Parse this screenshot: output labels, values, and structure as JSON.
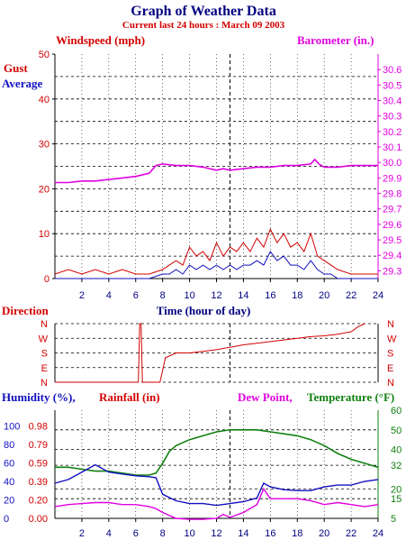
{
  "title": "Graph of Weather Data",
  "subtitle": "Current last 24 hours : March 09 2003",
  "colors": {
    "red": "#d40000",
    "blue": "#1010c0",
    "magenta": "#e000e0",
    "green": "#108010",
    "navy": "#000080",
    "grid": "#000000"
  },
  "chart_data": [
    {
      "type": "line",
      "ylabel_left": "Windspeed (mph)",
      "ylabel_right": "Barometer (in.)",
      "xlabel": "Time (hour of day)",
      "xlim": [
        0,
        24
      ],
      "ylim_left": [
        0,
        50
      ],
      "ylim_right": [
        29.25,
        30.7
      ],
      "x_ticks": [
        "2",
        "4",
        "6",
        "8",
        "10",
        "12",
        "14",
        "16",
        "18",
        "20",
        "22",
        "24"
      ],
      "y_ticks_left": [
        "0",
        "10",
        "20",
        "30",
        "40",
        "50"
      ],
      "y_ticks_right": [
        "29.3",
        "29.4",
        "29.5",
        "29.6",
        "29.7",
        "29.8",
        "29.9",
        "30.0",
        "30.1",
        "30.2",
        "30.3",
        "30.4",
        "30.5",
        "30.6"
      ],
      "current_time_marker": 13,
      "series": [
        {
          "name": "Gust",
          "axis": "left",
          "color": "#d40000",
          "x": [
            0,
            1,
            2,
            3,
            4,
            5,
            6,
            7,
            8,
            8.5,
            9,
            9.5,
            10,
            10.5,
            11,
            11.5,
            12,
            12.5,
            13,
            13.5,
            14,
            14.5,
            15,
            15.5,
            16,
            16.5,
            17,
            17.5,
            18,
            18.5,
            19,
            19.5,
            20,
            20.5,
            21,
            22,
            23,
            24
          ],
          "y": [
            1,
            2,
            1,
            2,
            1,
            2,
            1,
            1,
            2,
            3,
            4,
            3,
            7,
            5,
            6,
            4,
            8,
            5,
            7,
            6,
            8,
            6,
            9,
            7,
            11,
            8,
            10,
            7,
            8,
            6,
            10,
            5,
            4,
            3,
            2,
            1,
            1,
            1
          ]
        },
        {
          "name": "Average",
          "axis": "left",
          "color": "#1010c0",
          "x": [
            0,
            1,
            2,
            3,
            4,
            5,
            6,
            7,
            8,
            8.5,
            9,
            9.5,
            10,
            10.5,
            11,
            11.5,
            12,
            12.5,
            13,
            13.5,
            14,
            14.5,
            15,
            15.5,
            16,
            16.5,
            17,
            17.5,
            18,
            18.5,
            19,
            19.5,
            20,
            20.5,
            21,
            22,
            23,
            24
          ],
          "y": [
            0,
            0,
            0,
            0,
            0,
            0,
            0,
            0,
            1,
            1,
            2,
            1,
            3,
            2,
            3,
            2,
            3,
            2,
            3,
            2,
            3,
            3,
            4,
            3,
            6,
            4,
            5,
            3,
            3,
            2,
            4,
            2,
            1,
            1,
            0,
            0,
            0,
            0
          ]
        },
        {
          "name": "Barometer",
          "axis": "right",
          "color": "#e000e0",
          "x": [
            0,
            1,
            2,
            3,
            4,
            5,
            6,
            7,
            7.5,
            8,
            9,
            10,
            11,
            12,
            12.5,
            13,
            14,
            15,
            16,
            17,
            18,
            19,
            19.3,
            19.6,
            20,
            21,
            22,
            23,
            24
          ],
          "y": [
            29.87,
            29.87,
            29.88,
            29.88,
            29.89,
            29.9,
            29.91,
            29.93,
            29.98,
            29.99,
            29.98,
            29.98,
            29.97,
            29.95,
            29.96,
            29.95,
            29.96,
            29.97,
            29.97,
            29.98,
            29.98,
            29.99,
            30.02,
            29.99,
            29.97,
            29.97,
            29.98,
            29.98,
            29.98
          ]
        }
      ]
    },
    {
      "type": "line",
      "ylabel": "Direction",
      "y_ticks": [
        "N",
        "W",
        "S",
        "E",
        "N"
      ],
      "series": [
        {
          "name": "Direction",
          "color": "#d40000",
          "x": [
            0,
            6,
            6.2,
            6.3,
            6.4,
            6.5,
            6.6,
            7.8,
            8.2,
            9,
            10,
            11,
            12,
            13,
            14,
            15,
            16,
            17,
            18,
            19,
            20,
            21,
            22,
            22.5,
            23
          ],
          "y": [
            0,
            0,
            0,
            360,
            360,
            0,
            0,
            0,
            150,
            180,
            180,
            190,
            200,
            215,
            230,
            240,
            250,
            260,
            270,
            280,
            285,
            295,
            310,
            340,
            360
          ]
        }
      ]
    },
    {
      "type": "line",
      "labels": {
        "humidity": "Humidity (%),",
        "rainfall": "Rainfall (in)",
        "dewpoint": "Dew Point,",
        "temperature": "Temperature (°F)"
      },
      "ylim_left": [
        0,
        117
      ],
      "ylim_right": [
        5,
        60
      ],
      "y_ticks_humidity": [
        "0",
        "20",
        "40",
        "60",
        "80",
        "100"
      ],
      "y_ticks_rainfall": [
        "0.00",
        "0.20",
        "0.39",
        "0.59",
        "0.79",
        "0.98"
      ],
      "y_ticks_temp": [
        "5",
        "15",
        "20",
        "32",
        "40",
        "50",
        "60"
      ],
      "series": [
        {
          "name": "Humidity",
          "axis": "left",
          "color": "#1010c0",
          "x": [
            0,
            1,
            2,
            3,
            4,
            5,
            6,
            7,
            7.5,
            8,
            9,
            10,
            11,
            12,
            13,
            14,
            15,
            15.5,
            16,
            17,
            18,
            19,
            20,
            21,
            22,
            23,
            24
          ],
          "y": [
            38,
            42,
            50,
            58,
            50,
            48,
            46,
            45,
            44,
            26,
            19,
            16,
            16,
            14,
            16,
            18,
            22,
            38,
            34,
            31,
            30,
            30,
            34,
            36,
            36,
            40,
            42
          ]
        },
        {
          "name": "Dew Point",
          "axis": "right",
          "color": "#e000e0",
          "x": [
            0,
            1,
            2,
            3,
            4,
            5,
            6,
            7,
            7.5,
            8,
            9,
            10,
            11,
            12,
            12.5,
            13,
            14,
            15,
            15.5,
            16,
            17,
            18,
            19,
            20,
            21,
            22,
            23,
            24
          ],
          "y": [
            11,
            12,
            12.5,
            13,
            13,
            12,
            12,
            11,
            10,
            8,
            5,
            4.5,
            4.5,
            5,
            7,
            5.5,
            8,
            12,
            20,
            15,
            15,
            15,
            14,
            12,
            13,
            12,
            11,
            12
          ]
        },
        {
          "name": "Temperature",
          "axis": "right",
          "color": "#108010",
          "x": [
            0,
            1,
            2,
            3,
            4,
            5,
            6,
            7,
            7.5,
            8,
            8.5,
            9,
            10,
            11,
            12,
            13,
            14,
            15,
            16,
            17,
            18,
            19,
            20,
            21,
            22,
            23,
            24
          ],
          "y": [
            31,
            31,
            30,
            29,
            29,
            28,
            27,
            27,
            28,
            33,
            39,
            42,
            45,
            47,
            49,
            50,
            50,
            50,
            49,
            48,
            47,
            45,
            42,
            38,
            35,
            33,
            31
          ]
        }
      ]
    }
  ]
}
